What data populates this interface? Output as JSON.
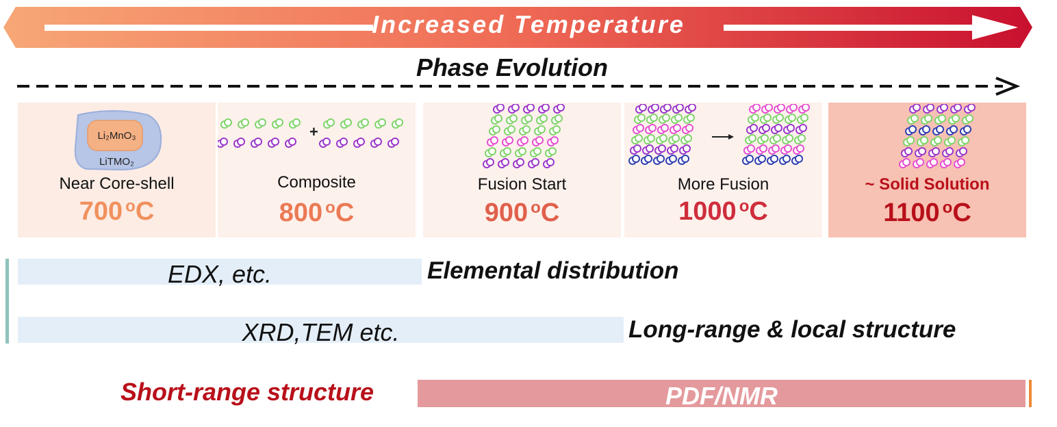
{
  "banner": {
    "title": "Increased Temperature"
  },
  "phase": {
    "title": "Phase Evolution"
  },
  "stages": [
    {
      "label": "Near Core-shell",
      "temp": "700",
      "unit": "o",
      "c": "C",
      "color": "#f0915e",
      "core": "Li₂MnO₃",
      "shell": "LiTMO₂"
    },
    {
      "label": "Composite",
      "temp": "800",
      "unit": "o",
      "c": "C",
      "color": "#eb7a55",
      "plus": "+"
    },
    {
      "label": "Fusion Start",
      "temp": "900",
      "unit": "o",
      "c": "C",
      "color": "#e0604c"
    },
    {
      "label": "More Fusion",
      "temp": "1000",
      "unit": "o",
      "c": "C",
      "color": "#cf2e3c"
    },
    {
      "label": "~ Solid Solution",
      "temp": "1100",
      "unit": "o",
      "c": "C",
      "color": "#b8101a"
    }
  ],
  "techniques": {
    "edx": {
      "method": "EDX, etc.",
      "property": "Elemental distribution"
    },
    "xrd": {
      "method": "XRD,TEM etc.",
      "property": "Long-range & local structure"
    },
    "pdf": {
      "method": "PDF/NMR",
      "property": "Short-range structure"
    }
  },
  "colors": {
    "banner_start": "#f7a777",
    "banner_end": "#c8102e",
    "green_atom": "#7fd46a",
    "purple_atom": "#9b37c9",
    "pink_atom": "#e64fd1",
    "blue_atom": "#2e3fb0"
  }
}
